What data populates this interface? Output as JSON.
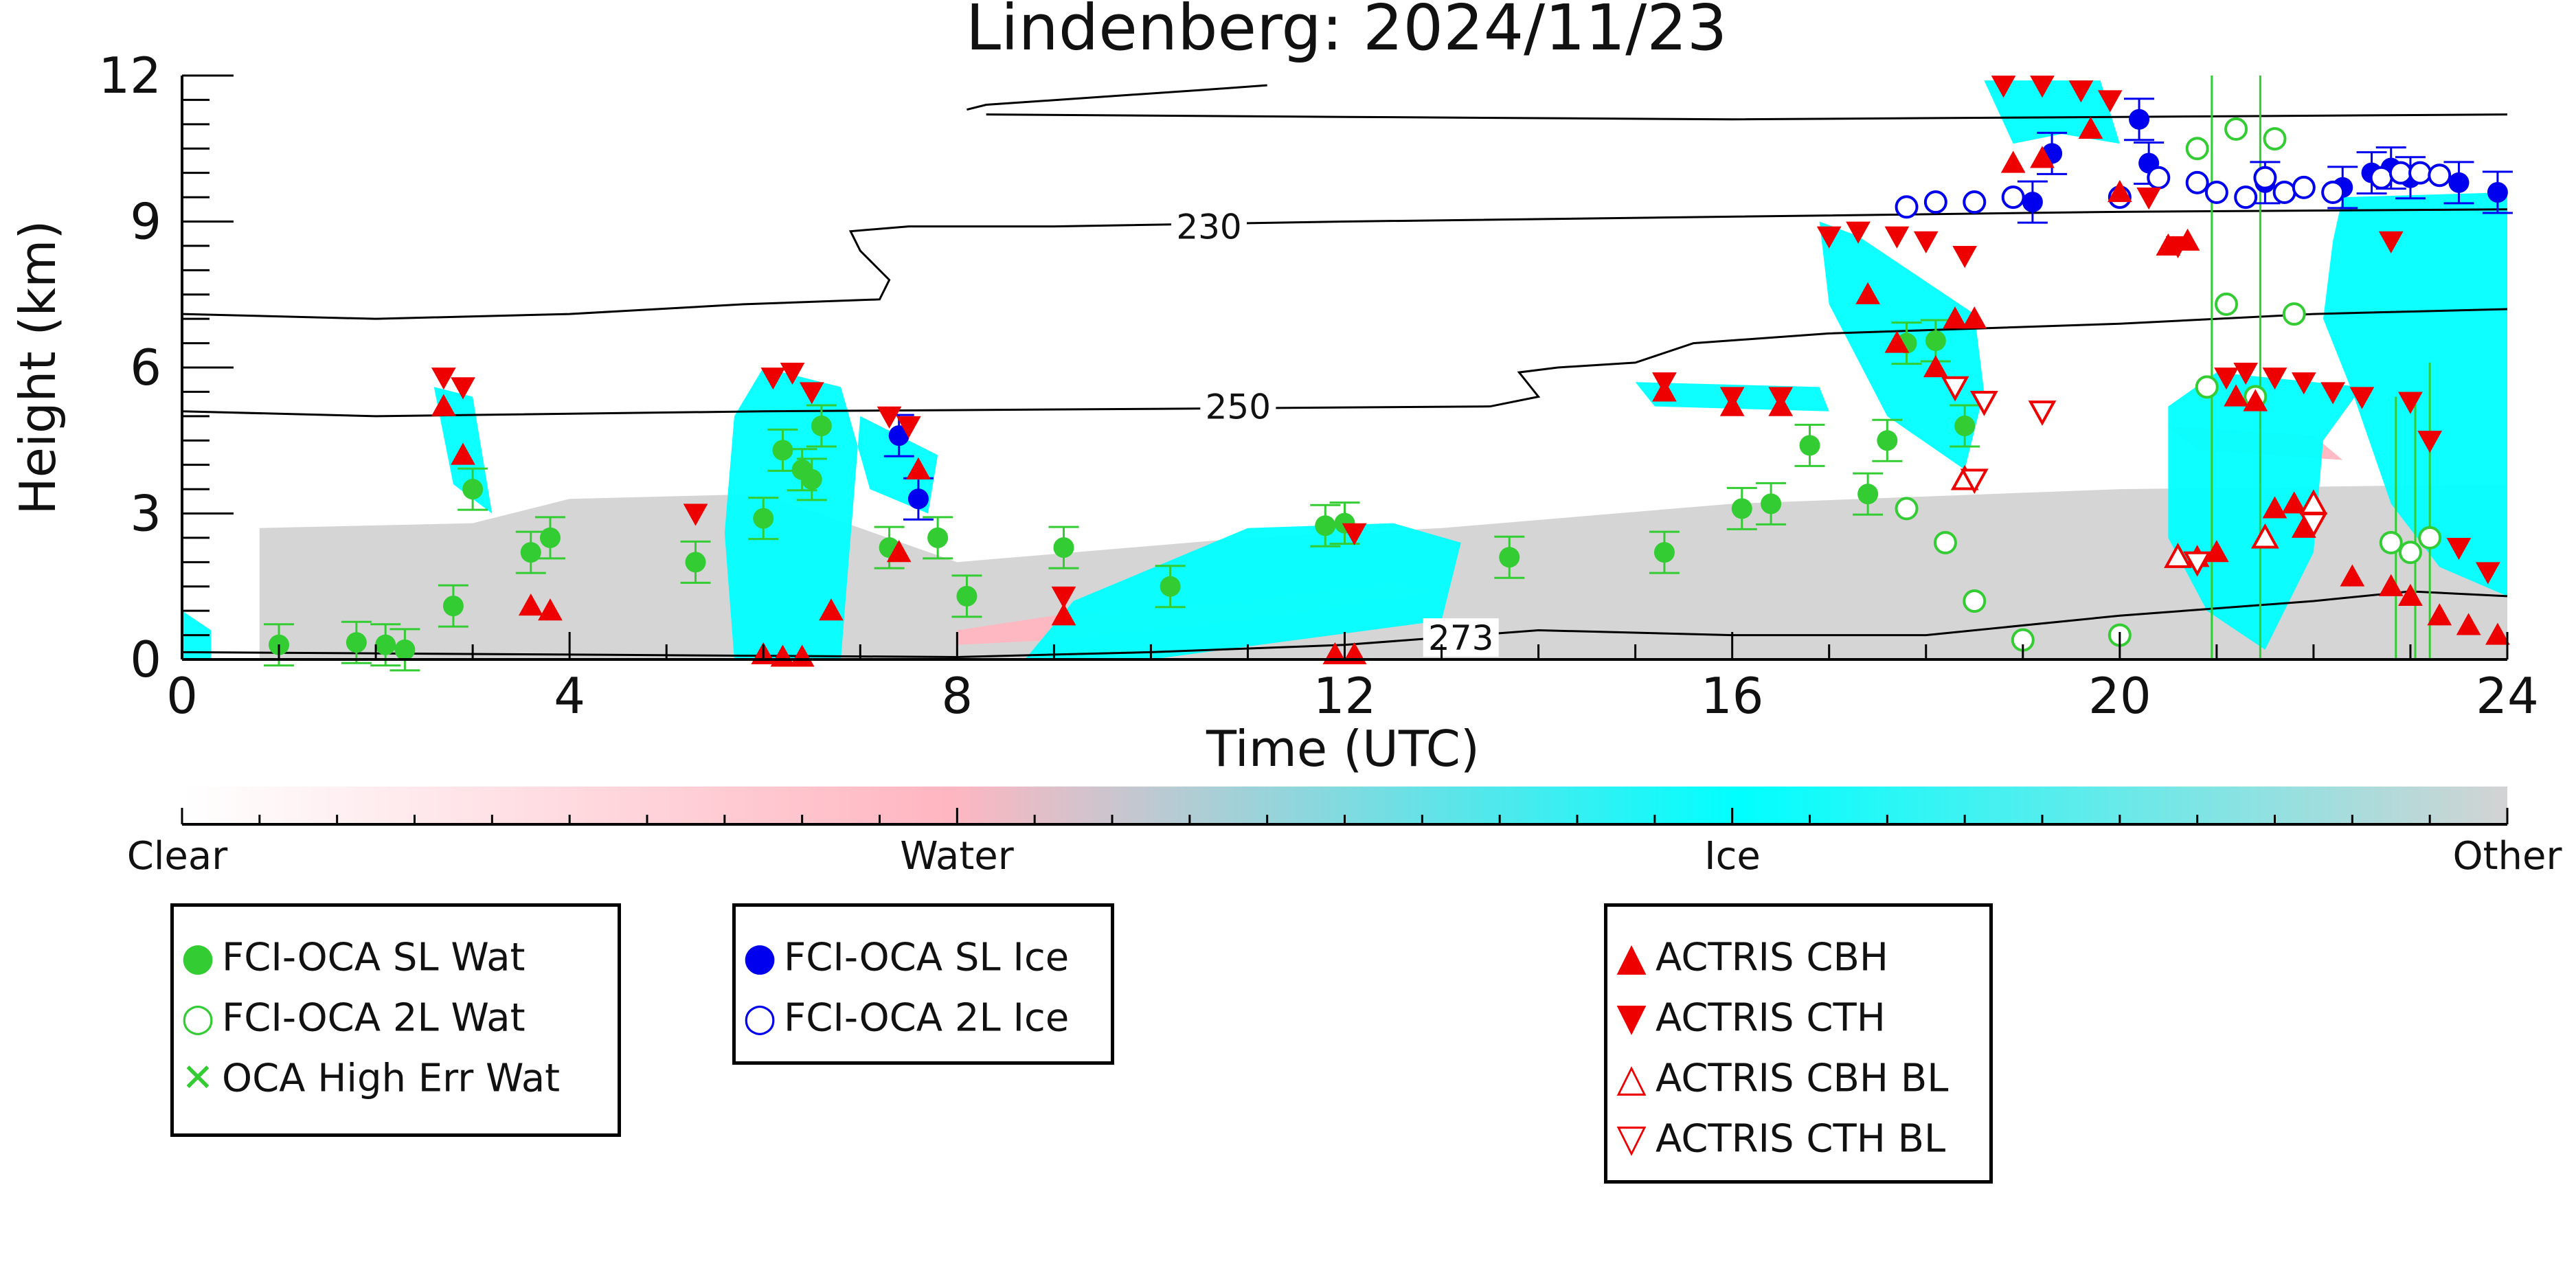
{
  "chart_data": {
    "type": "scatter",
    "title": "Lindenberg: 2024/11/23",
    "xlabel": "Time (UTC)",
    "ylabel": "Height (km)",
    "xlim": [
      0,
      24
    ],
    "ylim": [
      0,
      12
    ],
    "xticks": [
      0,
      4,
      8,
      12,
      16,
      20,
      24
    ],
    "yticks": [
      0,
      3,
      6,
      9,
      12
    ],
    "colorbar": {
      "labels": [
        "Clear",
        "Water",
        "Ice",
        "Other"
      ],
      "colors": [
        "#ffffff",
        "#ffb6c1",
        "#00ffff",
        "#d3d3d3"
      ]
    },
    "contours": [
      {
        "label": "230",
        "points": [
          [
            0,
            7.1
          ],
          [
            2,
            7.0
          ],
          [
            4,
            7.1
          ],
          [
            5.8,
            7.3
          ],
          [
            7.2,
            7.4
          ],
          [
            7.3,
            7.8
          ],
          [
            7.0,
            8.4
          ],
          [
            6.9,
            8.8
          ],
          [
            7.5,
            8.9
          ],
          [
            9,
            8.9
          ],
          [
            12,
            9.0
          ],
          [
            16,
            9.1
          ],
          [
            20,
            9.2
          ],
          [
            24,
            9.25
          ]
        ]
      },
      {
        "label": "230",
        "points": [
          [
            8.1,
            11.3
          ],
          [
            8.3,
            11.4
          ],
          [
            10.5,
            11.7
          ],
          [
            11.2,
            11.8
          ]
        ]
      },
      {
        "label": "",
        "points": [
          [
            8.3,
            11.2
          ],
          [
            12,
            11.15
          ],
          [
            16,
            11.1
          ],
          [
            20,
            11.15
          ],
          [
            24,
            11.2
          ]
        ]
      },
      {
        "label": "250",
        "points": [
          [
            0,
            5.1
          ],
          [
            2,
            5.0
          ],
          [
            6,
            5.1
          ],
          [
            10,
            5.15
          ],
          [
            13.5,
            5.2
          ],
          [
            14.0,
            5.4
          ],
          [
            13.8,
            5.9
          ],
          [
            14.2,
            6.0
          ],
          [
            15,
            6.1
          ],
          [
            15.6,
            6.5
          ],
          [
            17,
            6.7
          ],
          [
            20,
            6.9
          ],
          [
            22,
            7.1
          ],
          [
            24,
            7.2
          ]
        ]
      },
      {
        "label": "273",
        "points": [
          [
            0,
            0.15
          ],
          [
            4,
            0.1
          ],
          [
            8,
            0.05
          ],
          [
            10,
            0.15
          ],
          [
            12,
            0.3
          ],
          [
            14,
            0.6
          ],
          [
            16,
            0.5
          ],
          [
            18,
            0.5
          ],
          [
            20,
            0.9
          ],
          [
            22,
            1.2
          ],
          [
            23,
            1.4
          ],
          [
            24,
            1.3
          ]
        ]
      }
    ],
    "series": [
      {
        "name": "FCI-OCA SL Wat",
        "color": "#33cc33",
        "marker": "filled-circle",
        "points": [
          [
            1.0,
            0.3
          ],
          [
            1.8,
            0.35
          ],
          [
            2.1,
            0.3
          ],
          [
            2.3,
            0.2
          ],
          [
            2.8,
            1.1
          ],
          [
            3.0,
            3.5
          ],
          [
            3.6,
            2.2
          ],
          [
            3.8,
            2.5
          ],
          [
            5.3,
            2.0
          ],
          [
            6.0,
            2.9
          ],
          [
            6.2,
            4.3
          ],
          [
            6.4,
            3.9
          ],
          [
            6.5,
            3.7
          ],
          [
            6.6,
            4.8
          ],
          [
            7.3,
            2.3
          ],
          [
            7.8,
            2.5
          ],
          [
            8.1,
            1.3
          ],
          [
            9.1,
            2.3
          ],
          [
            10.2,
            1.5
          ],
          [
            11.8,
            2.75
          ],
          [
            12.0,
            2.8
          ],
          [
            13.7,
            2.1
          ],
          [
            15.3,
            2.2
          ],
          [
            16.1,
            3.1
          ],
          [
            16.4,
            3.2
          ],
          [
            16.8,
            4.4
          ],
          [
            17.4,
            3.4
          ],
          [
            17.6,
            4.5
          ],
          [
            17.8,
            6.5
          ],
          [
            18.1,
            6.55
          ],
          [
            18.4,
            4.8
          ]
        ]
      },
      {
        "name": "FCI-OCA 2L Wat",
        "color": "#33cc33",
        "marker": "open-circle",
        "points": [
          [
            17.8,
            3.1
          ],
          [
            18.2,
            2.4
          ],
          [
            18.5,
            1.2
          ],
          [
            19.0,
            0.4
          ],
          [
            20.0,
            0.5
          ],
          [
            20.8,
            10.5
          ],
          [
            20.9,
            5.6
          ],
          [
            21.1,
            7.3
          ],
          [
            21.2,
            10.9
          ],
          [
            21.4,
            5.4
          ],
          [
            21.6,
            10.7
          ],
          [
            21.8,
            7.1
          ],
          [
            22.8,
            2.4
          ],
          [
            23.0,
            2.2
          ],
          [
            23.2,
            2.5
          ]
        ]
      },
      {
        "name": "OCA High Err Wat",
        "color": "#33cc33",
        "marker": "x",
        "points": []
      },
      {
        "name": "FCI-OCA SL Ice",
        "color": "#0000ee",
        "marker": "filled-circle",
        "points": [
          [
            7.4,
            4.6
          ],
          [
            7.6,
            3.3
          ],
          [
            19.1,
            9.4
          ],
          [
            19.3,
            10.4
          ],
          [
            20.2,
            11.1
          ],
          [
            20.3,
            10.2
          ],
          [
            21.5,
            9.8
          ],
          [
            22.3,
            9.7
          ],
          [
            22.6,
            10.0
          ],
          [
            22.8,
            10.1
          ],
          [
            23.0,
            9.9
          ],
          [
            23.5,
            9.8
          ],
          [
            23.9,
            9.6
          ]
        ]
      },
      {
        "name": "FCI-OCA 2L Ice",
        "color": "#0000ee",
        "marker": "open-circle",
        "points": [
          [
            17.8,
            9.3
          ],
          [
            18.1,
            9.4
          ],
          [
            18.5,
            9.4
          ],
          [
            18.9,
            9.5
          ],
          [
            20.0,
            9.5
          ],
          [
            20.4,
            9.9
          ],
          [
            20.8,
            9.8
          ],
          [
            21.0,
            9.6
          ],
          [
            21.3,
            9.5
          ],
          [
            21.5,
            9.9
          ],
          [
            21.7,
            9.6
          ],
          [
            21.9,
            9.7
          ],
          [
            22.2,
            9.6
          ],
          [
            22.7,
            9.9
          ],
          [
            22.9,
            10.0
          ],
          [
            23.1,
            10.0
          ],
          [
            23.3,
            9.95
          ]
        ]
      },
      {
        "name": "ACTRIS CBH",
        "color": "#ee0000",
        "marker": "triangle-up",
        "points": [
          [
            2.7,
            5.2
          ],
          [
            2.9,
            4.2
          ],
          [
            3.6,
            1.1
          ],
          [
            3.8,
            1.0
          ],
          [
            6.0,
            0.1
          ],
          [
            6.2,
            0.05
          ],
          [
            6.4,
            0.05
          ],
          [
            6.7,
            1.0
          ],
          [
            7.4,
            2.2
          ],
          [
            7.6,
            3.9
          ],
          [
            9.1,
            0.9
          ],
          [
            11.9,
            0.1
          ],
          [
            12.1,
            0.1
          ],
          [
            15.3,
            5.5
          ],
          [
            16.0,
            5.2
          ],
          [
            16.5,
            5.2
          ],
          [
            17.4,
            7.5
          ],
          [
            17.7,
            6.5
          ],
          [
            18.1,
            6.0
          ],
          [
            18.3,
            7.0
          ],
          [
            18.5,
            7.0
          ],
          [
            18.9,
            10.2
          ],
          [
            19.2,
            10.3
          ],
          [
            19.7,
            10.9
          ],
          [
            20.0,
            9.6
          ],
          [
            20.5,
            8.5
          ],
          [
            20.7,
            8.6
          ],
          [
            20.8,
            2.1
          ],
          [
            21.0,
            2.2
          ],
          [
            21.2,
            5.4
          ],
          [
            21.4,
            5.3
          ],
          [
            21.6,
            3.1
          ],
          [
            21.8,
            3.2
          ],
          [
            21.9,
            2.7
          ],
          [
            22.4,
            1.7
          ],
          [
            22.8,
            1.5
          ],
          [
            23.0,
            1.3
          ],
          [
            23.3,
            0.9
          ],
          [
            23.6,
            0.7
          ],
          [
            23.9,
            0.5
          ]
        ]
      },
      {
        "name": "ACTRIS CTH",
        "color": "#ee0000",
        "marker": "triangle-down",
        "points": [
          [
            2.7,
            5.8
          ],
          [
            2.9,
            5.6
          ],
          [
            5.3,
            3.0
          ],
          [
            6.1,
            5.8
          ],
          [
            6.3,
            5.9
          ],
          [
            6.5,
            5.5
          ],
          [
            7.3,
            5.0
          ],
          [
            7.5,
            4.8
          ],
          [
            9.1,
            1.3
          ],
          [
            12.1,
            2.6
          ],
          [
            15.3,
            5.7
          ],
          [
            16.0,
            5.4
          ],
          [
            16.5,
            5.4
          ],
          [
            17.0,
            8.7
          ],
          [
            17.3,
            8.8
          ],
          [
            17.7,
            8.7
          ],
          [
            18.0,
            8.6
          ],
          [
            18.4,
            8.3
          ],
          [
            18.8,
            11.8
          ],
          [
            19.2,
            11.8
          ],
          [
            19.6,
            11.7
          ],
          [
            19.9,
            11.5
          ],
          [
            20.3,
            9.5
          ],
          [
            20.6,
            8.5
          ],
          [
            21.1,
            5.8
          ],
          [
            21.3,
            5.9
          ],
          [
            21.6,
            5.8
          ],
          [
            21.9,
            5.7
          ],
          [
            22.2,
            5.5
          ],
          [
            22.5,
            5.4
          ],
          [
            22.8,
            8.6
          ],
          [
            23.0,
            5.3
          ],
          [
            23.2,
            4.5
          ],
          [
            23.5,
            2.3
          ],
          [
            23.8,
            1.8
          ]
        ]
      },
      {
        "name": "ACTRIS CBH BL",
        "color": "#ee0000",
        "marker": "open-triangle-up",
        "points": [
          [
            18.4,
            3.7
          ],
          [
            20.6,
            2.1
          ],
          [
            21.5,
            2.5
          ],
          [
            22.0,
            3.2
          ]
        ]
      },
      {
        "name": "ACTRIS CTH BL",
        "color": "#ee0000",
        "marker": "open-triangle-down",
        "points": [
          [
            18.3,
            5.6
          ],
          [
            18.5,
            3.7
          ],
          [
            18.6,
            5.3
          ],
          [
            19.2,
            5.1
          ],
          [
            20.8,
            2.0
          ],
          [
            22.0,
            2.8
          ]
        ]
      }
    ],
    "grid": false
  }
}
